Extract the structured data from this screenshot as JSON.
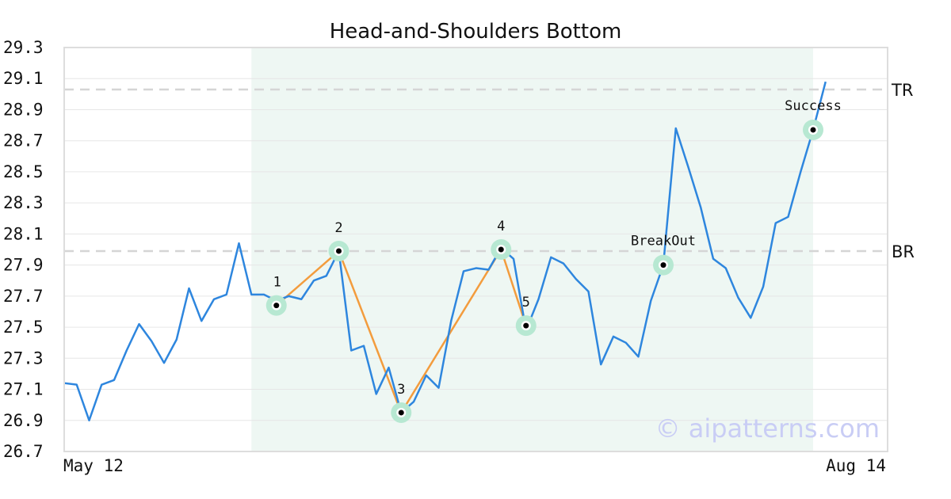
{
  "chart_data": {
    "type": "line",
    "title": "Head-and-Shoulders Bottom",
    "ylim": [
      26.7,
      29.3
    ],
    "y_ticks": [
      "29.3",
      "29.1",
      "28.9",
      "28.7",
      "28.5",
      "28.3",
      "28.1",
      "27.9",
      "27.7",
      "27.5",
      "27.3",
      "27.1",
      "26.9",
      "26.7"
    ],
    "x_labels": {
      "start": "May 12",
      "end": "Aug 14"
    },
    "grid": true,
    "series": [
      {
        "values": [
          27.14,
          27.13,
          26.9,
          27.13,
          27.16,
          27.35,
          27.52,
          27.41,
          27.27,
          27.42,
          27.75,
          27.54,
          27.68,
          27.71,
          28.04,
          27.71,
          27.71,
          27.67,
          27.7,
          27.68,
          27.8,
          27.83,
          27.99,
          27.35,
          27.38,
          27.07,
          27.24,
          26.95,
          27.02,
          27.19,
          27.11,
          27.54,
          27.86,
          27.88,
          27.87,
          28.01,
          27.94,
          27.48,
          27.68,
          27.95,
          27.91,
          27.81,
          27.73,
          27.26,
          27.44,
          27.4,
          27.31,
          27.67,
          27.9,
          28.78,
          28.53,
          28.27,
          27.94,
          27.88,
          27.69,
          27.56,
          27.76,
          28.17,
          28.21,
          28.5,
          28.77,
          29.08
        ],
        "color": "#2e86de"
      }
    ],
    "pattern_points": [
      {
        "label": "1",
        "index": 17,
        "value": 27.64
      },
      {
        "label": "2",
        "index": 22,
        "value": 27.99
      },
      {
        "label": "3",
        "index": 27,
        "value": 26.95
      },
      {
        "label": "4",
        "index": 35,
        "value": 28.0
      },
      {
        "label": "5",
        "index": 37,
        "value": 27.51
      }
    ],
    "event_points": [
      {
        "label": "BreakOut",
        "index": 48,
        "value": 27.9
      },
      {
        "label": "Success",
        "index": 60,
        "value": 28.77
      }
    ],
    "reference_lines": [
      {
        "label": "TR",
        "value": 29.03
      },
      {
        "label": "BR",
        "value": 27.99
      }
    ],
    "highlight_range": {
      "start_index": 15,
      "end_index": 60
    },
    "colors": {
      "price": "#2e86de",
      "pattern": "#f39c3d",
      "marker_halo": "#b7e8d2",
      "highlight": "#eef7f3",
      "reference": "#d5d5d5"
    }
  },
  "watermark": "© aipatterns.com"
}
